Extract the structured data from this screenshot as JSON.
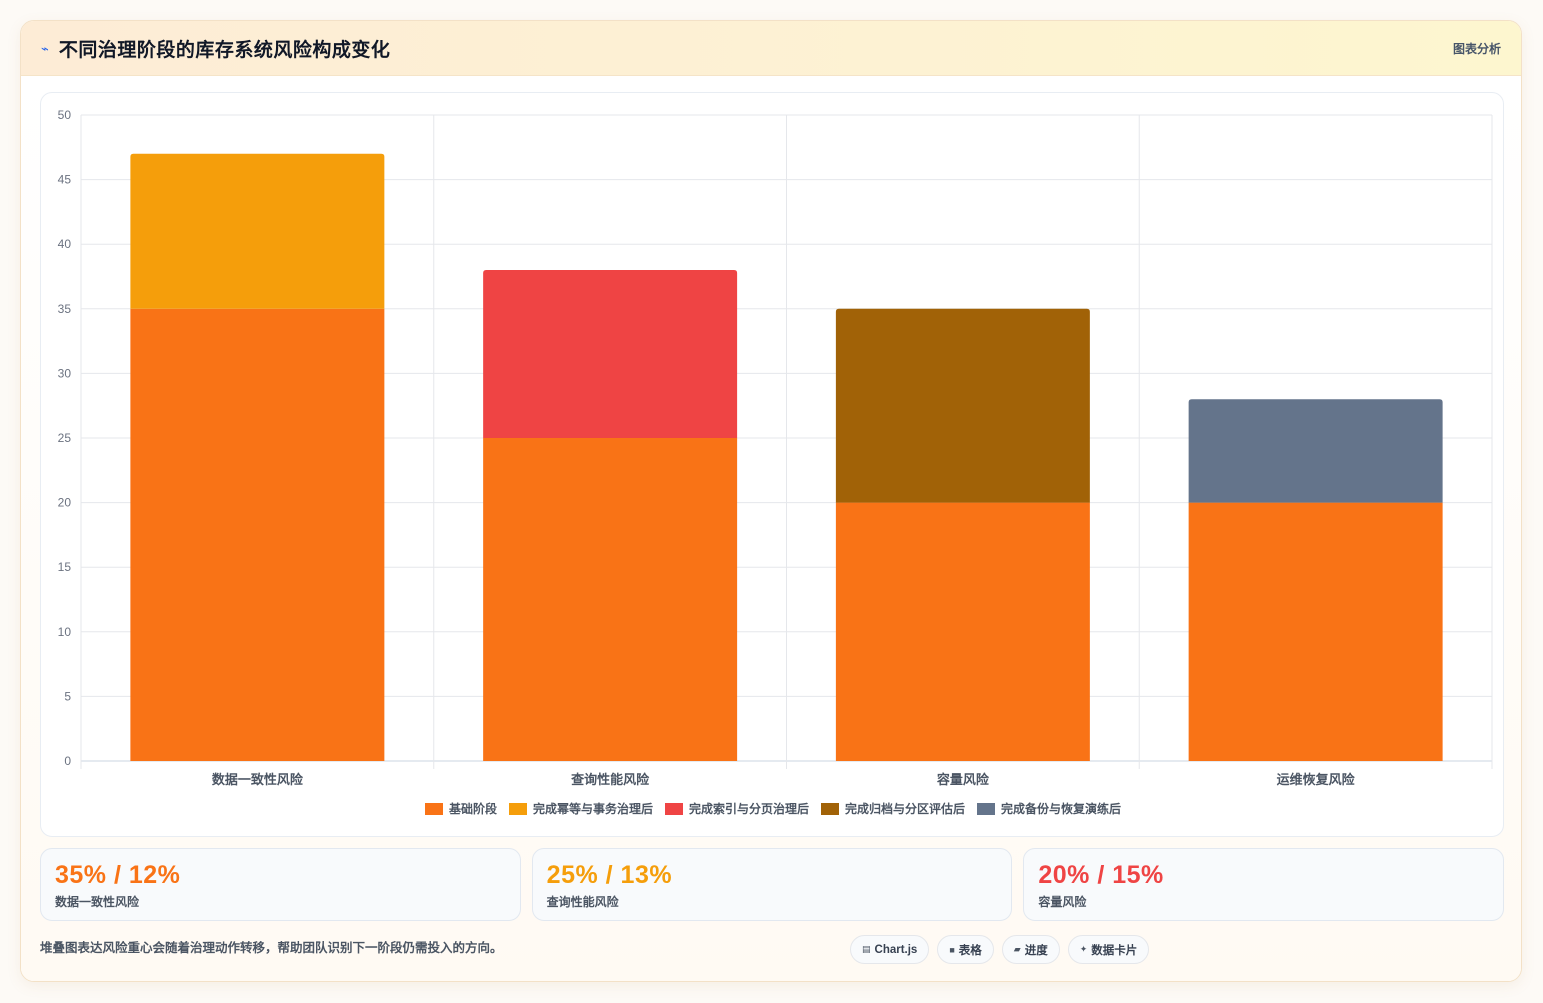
{
  "header": {
    "icon": "trend-icon",
    "title": "不同治理阶段的库存系统风险构成变化",
    "tag": "图表分析"
  },
  "chart_data": {
    "type": "bar",
    "stacked": true,
    "categories": [
      "数据一致性风险",
      "查询性能风险",
      "容量风险",
      "运维恢复风险"
    ],
    "series": [
      {
        "name": "基础阶段",
        "color": "#f97316",
        "values": [
          35,
          25,
          20,
          20
        ]
      },
      {
        "name": "完成幂等与事务治理后",
        "color": "#f59e0b",
        "values": [
          12,
          0,
          0,
          0
        ]
      },
      {
        "name": "完成索引与分页治理后",
        "color": "#ef4444",
        "values": [
          0,
          13,
          0,
          0
        ]
      },
      {
        "name": "完成归档与分区评估后",
        "color": "#a16207",
        "values": [
          0,
          0,
          15,
          0
        ]
      },
      {
        "name": "完成备份与恢复演练后",
        "color": "#64748b",
        "values": [
          0,
          0,
          0,
          8
        ]
      }
    ],
    "ylim": [
      0,
      50
    ],
    "yticks": [
      0,
      5,
      10,
      15,
      20,
      25,
      30,
      35,
      40,
      45,
      50
    ],
    "grid": true,
    "legend": "bottom"
  },
  "stats": [
    {
      "value": "35% / 12%",
      "label": "数据一致性风险",
      "color": "#f97316"
    },
    {
      "value": "25% / 13%",
      "label": "查询性能风险",
      "color": "#f59e0b"
    },
    {
      "value": "20% / 15%",
      "label": "容量风险",
      "color": "#ef4444"
    }
  ],
  "footer": {
    "note": "堆叠图表达风险重心会随着治理动作转移，帮助团队识别下一阶段仍需投入的方向。"
  },
  "chips": [
    {
      "icon": "chart-icon",
      "glyph": "▤",
      "label": "Chart.js"
    },
    {
      "icon": "table-icon",
      "glyph": "■",
      "label": "表格"
    },
    {
      "icon": "progress-icon",
      "glyph": "▰",
      "label": "进度"
    },
    {
      "icon": "sparkle-icon",
      "glyph": "✦",
      "label": "数据卡片"
    }
  ]
}
